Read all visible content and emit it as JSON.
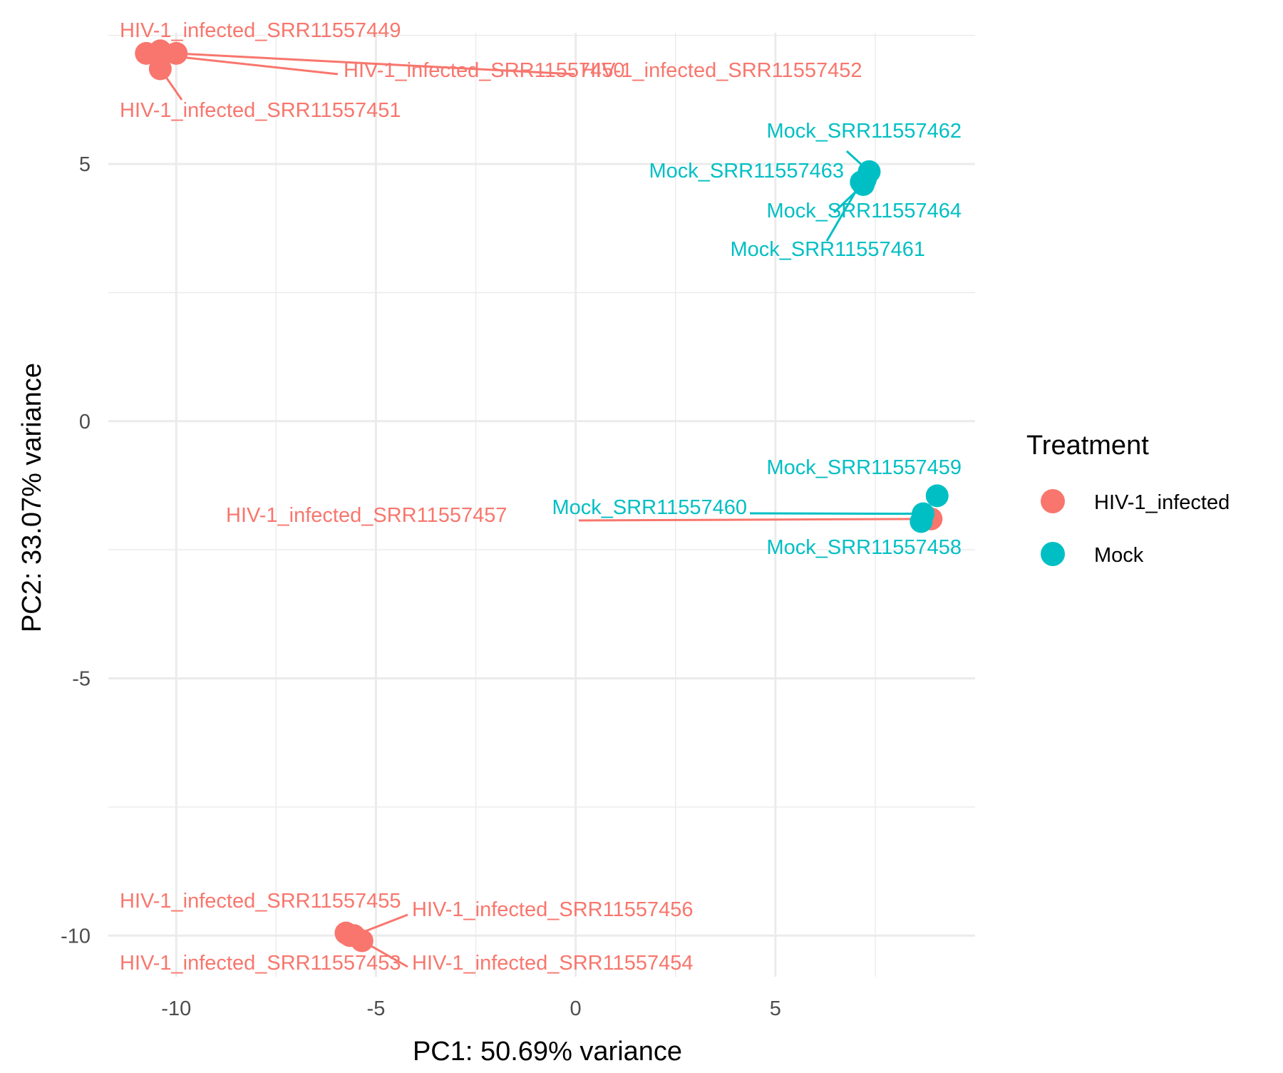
{
  "chart_data": {
    "type": "scatter",
    "title": "",
    "xlabel": "PC1: 50.69% variance",
    "ylabel": "PC2: 33.07% variance",
    "xlim": [
      -11.7,
      10
    ],
    "ylim": [
      -10.8,
      7.55
    ],
    "x_ticks": [
      -10,
      -5,
      0,
      5
    ],
    "x_tick_labels": [
      "-10",
      "-5",
      "0",
      "5"
    ],
    "y_ticks": [
      -10,
      -5,
      0,
      5
    ],
    "y_tick_labels": [
      "-10",
      "-5",
      "0",
      "5"
    ],
    "grid": true,
    "legend": {
      "title": "Treatment",
      "placement": "right",
      "entries": [
        {
          "label": "HIV-1_infected",
          "color": "#F8766D"
        },
        {
          "label": "Mock",
          "color": "#00BFC4"
        }
      ]
    },
    "series": [
      {
        "name": "HIV-1_infected",
        "color": "#F8766D",
        "points": [
          {
            "label": "HIV-1_infected_SRR11557449",
            "x": -10.4,
            "y": 7.2
          },
          {
            "label": "HIV-1_infected_SRR11557450",
            "x": -10.75,
            "y": 7.15
          },
          {
            "label": "HIV-1_infected_SRR11557452",
            "x": -10.0,
            "y": 7.15
          },
          {
            "label": "HIV-1_infected_SRR11557451",
            "x": -10.4,
            "y": 6.85
          },
          {
            "label": "HIV-1_infected_SRR11557457",
            "x": 8.9,
            "y": -1.9
          },
          {
            "label": "HIV-1_infected_SRR11557455",
            "x": -5.75,
            "y": -9.95
          },
          {
            "label": "HIV-1_infected_SRR11557456",
            "x": -5.55,
            "y": -10.0
          },
          {
            "label": "HIV-1_infected_SRR11557453",
            "x": -5.65,
            "y": -10.0
          },
          {
            "label": "HIV-1_infected_SRR11557454",
            "x": -5.35,
            "y": -10.1
          }
        ]
      },
      {
        "name": "Mock",
        "color": "#00BFC4",
        "points": [
          {
            "label": "Mock_SRR11557462",
            "x": 7.35,
            "y": 4.85
          },
          {
            "label": "Mock_SRR11557463",
            "x": 7.25,
            "y": 4.7
          },
          {
            "label": "Mock_SRR11557464",
            "x": 7.2,
            "y": 4.6
          },
          {
            "label": "Mock_SRR11557461",
            "x": 7.15,
            "y": 4.65
          },
          {
            "label": "Mock_SRR11557459",
            "x": 9.05,
            "y": -1.45
          },
          {
            "label": "Mock_SRR11557460",
            "x": 8.7,
            "y": -1.8
          },
          {
            "label": "Mock_SRR11557458",
            "x": 8.65,
            "y": -1.95
          }
        ]
      }
    ]
  }
}
